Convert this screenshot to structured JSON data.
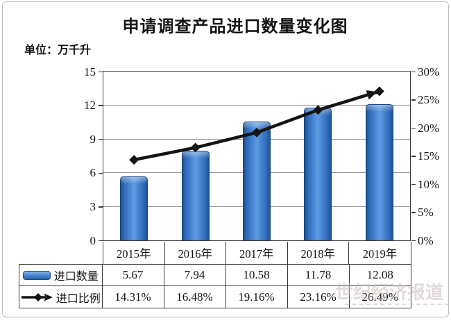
{
  "header": {
    "title": "申请调查产品进口数量变化图",
    "unit_label": "单位：万千升"
  },
  "watermark": {
    "text": "世纪经济报道"
  },
  "chart_data": {
    "type": "bar",
    "subtype": "combo bar+line, dual axis, with attached data table",
    "title": "申请调查产品进口数量变化图",
    "unit": "万千升",
    "categories": [
      "2015年",
      "2016年",
      "2017年",
      "2018年",
      "2019年"
    ],
    "series": [
      {
        "name": "进口数量",
        "type": "bar",
        "axis": "left",
        "values": [
          5.67,
          7.94,
          10.58,
          11.78,
          12.08
        ],
        "labels": [
          "5.67",
          "7.94",
          "10.58",
          "11.78",
          "12.08"
        ],
        "color": "#3f7ed2"
      },
      {
        "name": "进口比例",
        "type": "line",
        "axis": "right",
        "values": [
          14.31,
          16.48,
          19.16,
          23.16,
          26.49
        ],
        "labels": [
          "14.31%",
          "16.48%",
          "19.16%",
          "23.16%",
          "26.49%"
        ],
        "color": "#141414",
        "marker": "diamond",
        "end_cap": "arrow"
      }
    ],
    "left_axis": {
      "min": 0,
      "max": 15,
      "step": 3,
      "ticks": [
        "0",
        "3",
        "6",
        "9",
        "12",
        "15"
      ]
    },
    "right_axis": {
      "min": 0,
      "max": 30,
      "step": 5,
      "ticks": [
        "0%",
        "5%",
        "10%",
        "15%",
        "20%",
        "25%",
        "30%"
      ]
    },
    "grid": "horizontal lines at left-axis steps",
    "legend_position": "table-left"
  }
}
